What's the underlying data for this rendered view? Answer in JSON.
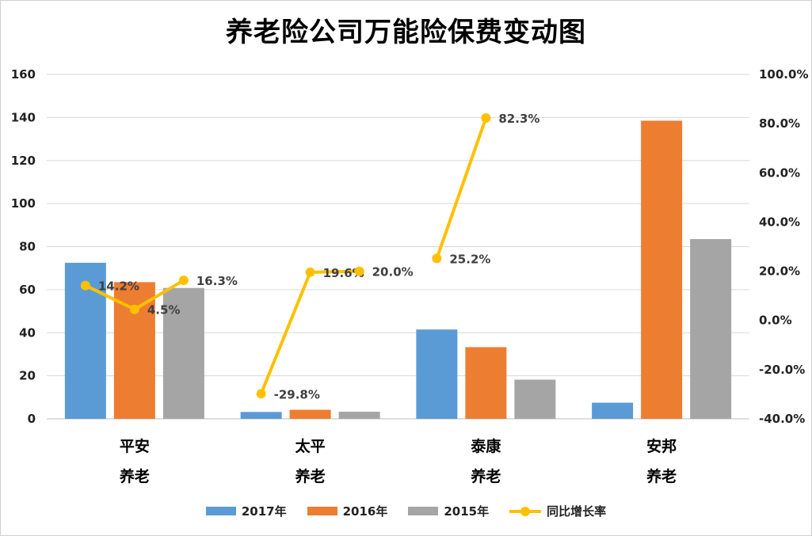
{
  "chart_data": {
    "type": "bar",
    "title": "养老险公司万能险保费变动图",
    "categories": [
      {
        "line1": "平安",
        "line2": "养老"
      },
      {
        "line1": "太平",
        "line2": "养老"
      },
      {
        "line1": "泰康",
        "line2": "养老"
      },
      {
        "line1": "安邦",
        "line2": "养老"
      }
    ],
    "series": [
      {
        "name": "2017年",
        "color": "#5b9bd5",
        "values": [
          72.5,
          3.2,
          41.5,
          7.5
        ]
      },
      {
        "name": "2016年",
        "color": "#ed7d31",
        "values": [
          63.5,
          4.2,
          33.3,
          138.5
        ]
      },
      {
        "name": "2015年",
        "color": "#a5a5a5",
        "values": [
          60.8,
          3.3,
          18.2,
          83.5
        ]
      }
    ],
    "growth": {
      "name": "同比增长率",
      "color": "#ffc000",
      "points": [
        {
          "group": 0,
          "bar": 0,
          "value": 14.2,
          "label": "14.2%"
        },
        {
          "group": 0,
          "bar": 1,
          "value": 4.5,
          "label": "4.5%"
        },
        {
          "group": 0,
          "bar": 2,
          "value": 16.3,
          "label": "16.3%"
        },
        {
          "group": 1,
          "bar": 0,
          "value": -29.8,
          "label": "-29.8%"
        },
        {
          "group": 1,
          "bar": 1,
          "value": 19.6,
          "label": "19.6%"
        },
        {
          "group": 1,
          "bar": 2,
          "value": 20.0,
          "label": "20.0%"
        },
        {
          "group": 2,
          "bar": 0,
          "value": 25.2,
          "label": "25.2%"
        },
        {
          "group": 2,
          "bar": 1,
          "value": 82.3,
          "label": "82.3%"
        }
      ]
    },
    "y_left": {
      "min": 0,
      "max": 160,
      "ticks": [
        "0",
        "20",
        "40",
        "60",
        "80",
        "100",
        "120",
        "140",
        "160"
      ]
    },
    "y_right": {
      "min": -40,
      "max": 100,
      "ticks": [
        "-40.0%",
        "-20.0%",
        "0.0%",
        "20.0%",
        "40.0%",
        "60.0%",
        "80.0%",
        "100.0%"
      ]
    },
    "gridlines": true,
    "legend_position": "bottom"
  }
}
